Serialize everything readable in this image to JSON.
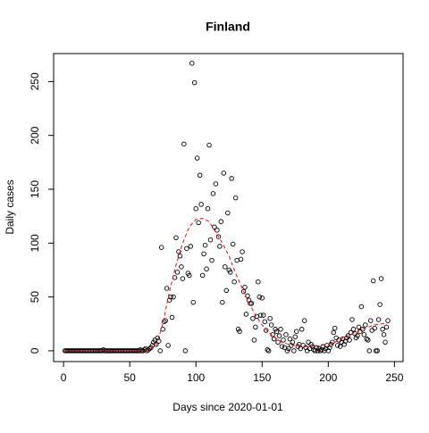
{
  "chart_data": {
    "type": "scatter",
    "title": "Finland",
    "x_label": "Days since 2020-01-01",
    "y_label": "Daily cases",
    "xlim": [
      -7.5,
      256.5
    ],
    "ylim": [
      -10,
      276
    ],
    "xticks": [
      0,
      50,
      100,
      150,
      200,
      250
    ],
    "yticks": [
      0,
      50,
      100,
      150,
      200,
      250
    ],
    "series": [
      {
        "color": "#000000",
        "style": "points",
        "x": [
          1,
          2,
          3,
          4,
          5,
          6,
          7,
          8,
          9,
          10,
          11,
          12,
          13,
          14,
          15,
          16,
          17,
          18,
          19,
          20,
          21,
          22,
          23,
          24,
          25,
          26,
          27,
          28,
          29,
          30,
          31,
          32,
          33,
          34,
          35,
          36,
          37,
          38,
          39,
          40,
          41,
          42,
          43,
          44,
          45,
          46,
          47,
          48,
          49,
          50,
          51,
          52,
          53,
          54,
          55,
          56,
          57,
          58,
          59,
          60,
          61,
          62,
          63,
          64,
          65,
          66,
          67,
          68,
          69,
          70,
          71,
          72,
          73,
          74,
          75,
          76,
          77,
          78,
          79,
          80,
          81,
          82,
          83,
          84,
          85,
          86,
          87,
          88,
          89,
          90,
          91,
          92,
          93,
          94,
          95,
          96,
          97,
          98,
          99,
          100,
          101,
          102,
          103,
          104,
          105,
          106,
          107,
          108,
          109,
          110,
          111,
          112,
          113,
          114,
          115,
          116,
          117,
          118,
          119,
          120,
          121,
          122,
          123,
          124,
          125,
          126,
          127,
          128,
          129,
          130,
          131,
          132,
          133,
          134,
          135,
          136,
          137,
          138,
          139,
          140,
          141,
          142,
          143,
          144,
          145,
          146,
          147,
          148,
          149,
          150,
          151,
          152,
          153,
          154,
          155,
          156,
          157,
          158,
          159,
          160,
          161,
          162,
          163,
          164,
          165,
          166,
          167,
          168,
          169,
          170,
          171,
          172,
          173,
          174,
          175,
          176,
          177,
          178,
          179,
          180,
          181,
          182,
          183,
          184,
          185,
          186,
          187,
          188,
          189,
          190,
          191,
          192,
          193,
          194,
          195,
          196,
          197,
          198,
          199,
          200,
          201,
          202,
          203,
          204,
          205,
          206,
          207,
          208,
          209,
          210,
          211,
          212,
          213,
          214,
          215,
          216,
          217,
          218,
          219,
          220,
          221,
          222,
          223,
          224,
          225,
          226,
          227,
          228,
          229,
          230,
          231,
          232,
          233,
          234,
          235,
          236,
          237,
          238,
          239,
          240,
          241,
          242,
          243,
          244,
          245
        ],
        "values": [
          0,
          0,
          0,
          0,
          0,
          0,
          0,
          0,
          0,
          0,
          0,
          0,
          0,
          0,
          0,
          0,
          0,
          0,
          0,
          0,
          0,
          0,
          0,
          0,
          0,
          0,
          0,
          0,
          0,
          1,
          0,
          0,
          0,
          0,
          0,
          0,
          0,
          0,
          0,
          0,
          0,
          0,
          0,
          0,
          0,
          0,
          0,
          0,
          0,
          0,
          0,
          0,
          0,
          0,
          0,
          0,
          0,
          1,
          0,
          0,
          1,
          2,
          0,
          1,
          2,
          3,
          5,
          8,
          10,
          6,
          12,
          9,
          0,
          96,
          20,
          27,
          28,
          58,
          5,
          47,
          50,
          31,
          50,
          68,
          105,
          73,
          92,
          88,
          78,
          67,
          192,
          0,
          95,
          72,
          70,
          97,
          267,
          45,
          249,
          132,
          179,
          119,
          163,
          136,
          70,
          90,
          98,
          76,
          132,
          191,
          103,
          84,
          146,
          115,
          155,
          112,
          106,
          97,
          120,
          45,
          165,
          78,
          56,
          128,
          75,
          73,
          160,
          99,
          64,
          142,
          84,
          20,
          18,
          85,
          92,
          55,
          59,
          34,
          51,
          47,
          44,
          44,
          30,
          10,
          22,
          32,
          64,
          50,
          33,
          49,
          33,
          27,
          19,
          1,
          0,
          30,
          24,
          15,
          11,
          20,
          18,
          8,
          14,
          20,
          4,
          10,
          3,
          15,
          0,
          2,
          11,
          5,
          8,
          0,
          13,
          18,
          4,
          6,
          2,
          20,
          5,
          28,
          3,
          0,
          8,
          2,
          6,
          4,
          1,
          0,
          3,
          0,
          2,
          0,
          1,
          4,
          0,
          2,
          5,
          0,
          3,
          6,
          8,
          17,
          21,
          12,
          5,
          10,
          4,
          8,
          11,
          6,
          9,
          12,
          14,
          10,
          17,
          29,
          20,
          16,
          12,
          14,
          22,
          18,
          41,
          20,
          15,
          24,
          11,
          10,
          0,
          28,
          19,
          65,
          21,
          0,
          0,
          29,
          43,
          67,
          20,
          15,
          8,
          22,
          28
        ]
      },
      {
        "color": "#ff0000",
        "style": "dashed",
        "x": [
          0,
          60,
          65,
          70,
          75,
          80,
          85,
          90,
          95,
          100,
          105,
          110,
          115,
          120,
          125,
          130,
          135,
          140,
          145,
          150,
          155,
          160,
          165,
          170,
          175,
          180,
          185,
          190,
          195,
          200,
          205,
          210,
          215,
          220,
          225,
          230,
          235,
          240,
          245
        ],
        "values": [
          0,
          0,
          1,
          5,
          25,
          55,
          80,
          100,
          115,
          122,
          123,
          120,
          110,
          100,
          88,
          72,
          58,
          45,
          33,
          24,
          17,
          12,
          8,
          6,
          5,
          4,
          4,
          4,
          5,
          6,
          8,
          11,
          14,
          17,
          20,
          22,
          24,
          25,
          26
        ]
      }
    ]
  }
}
